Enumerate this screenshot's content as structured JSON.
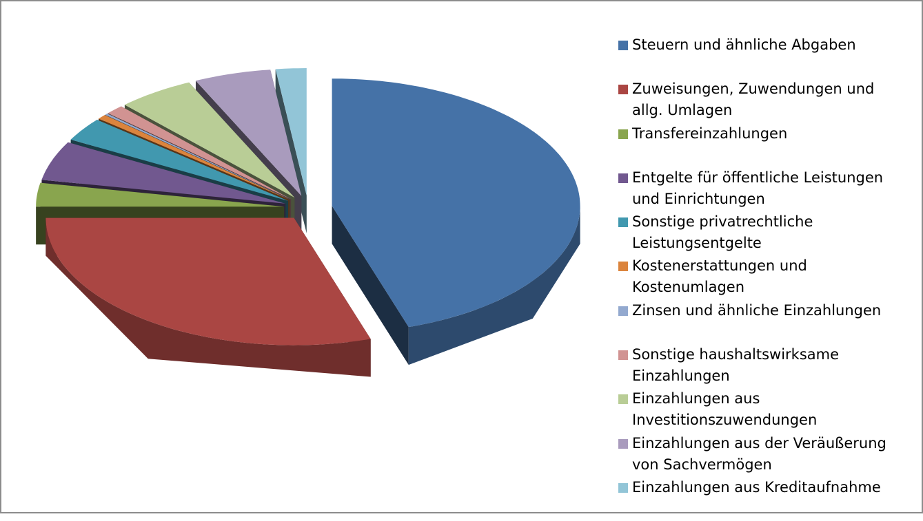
{
  "chart_data": {
    "type": "pie",
    "labels": [
      "Steuern und ähnliche Abgaben",
      "Zuweisungen, Zuwendungen und allg. Umlagen",
      "Transfereinzahlungen",
      "Entgelte für öffentliche Leistungen und Einrichtungen",
      "Sonstige privatrechtliche Leistungsentgelte",
      "Kostenerstattungen und Kostenumlagen",
      "Zinsen und ähnliche Einzahlungen",
      "Sonstige haushaltswirksame Einzahlungen",
      "Einzahlungen aus Investitionszuwendungen",
      "Einzahlungen aus der Veräußerung von Sachvermögen",
      "Einzahlungen aus Kreditaufnahme"
    ],
    "values": [
      45,
      30,
      3,
      5,
      3,
      0.6,
      0.2,
      1.2,
      5,
      5,
      2
    ],
    "colors": [
      "#4572a7",
      "#aa4643",
      "#89a54e",
      "#71588f",
      "#4198af",
      "#db843d",
      "#93a9cf",
      "#d19392",
      "#b9cd96",
      "#a99bbd",
      "#92c5d7"
    ],
    "legend": "right"
  }
}
